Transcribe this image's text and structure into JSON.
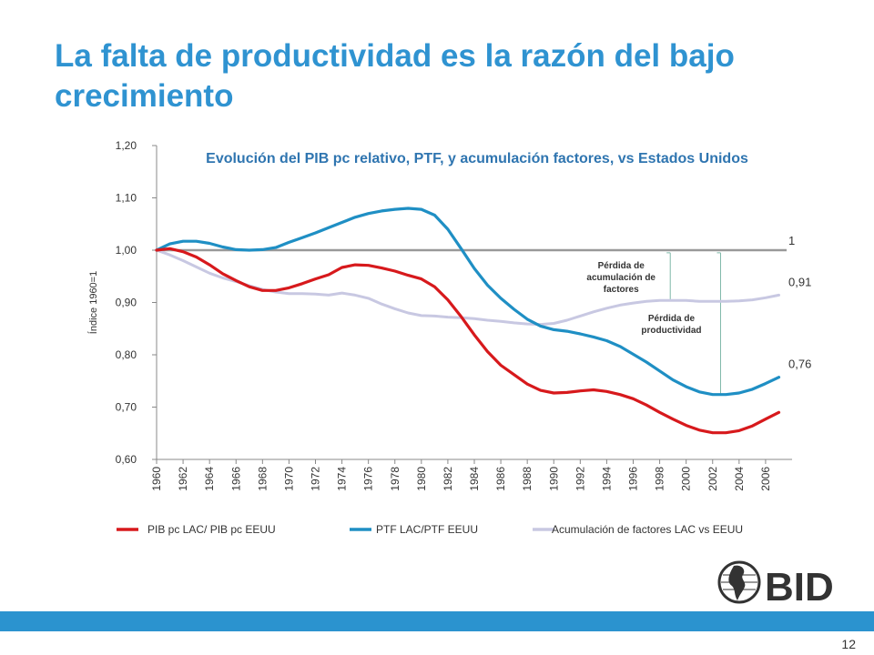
{
  "slide": {
    "title": "La falta de productividad es la razón del bajo crecimiento",
    "page_number": "12",
    "title_color": "#2f93d1",
    "bar_color": "#2b93cf",
    "logo": {
      "icon": "globe-americas-icon",
      "text": "BID"
    }
  },
  "chart_data": {
    "type": "line",
    "title": "Evolución del PIB pc relativo, PTF, y acumulación factores, vs Estados Unidos",
    "ylabel": "Índice 1960=1",
    "xlabel": "",
    "xlim": [
      1960,
      2008
    ],
    "ylim": [
      0.6,
      1.2
    ],
    "yticks": [
      {
        "v": 0.6,
        "label": "0,60"
      },
      {
        "v": 0.7,
        "label": "0,70"
      },
      {
        "v": 0.8,
        "label": "0,80"
      },
      {
        "v": 0.9,
        "label": "0,90"
      },
      {
        "v": 1.0,
        "label": "1,00"
      },
      {
        "v": 1.1,
        "label": "1,10"
      },
      {
        "v": 1.2,
        "label": "1,20"
      }
    ],
    "xticks": [
      1960,
      1962,
      1964,
      1966,
      1968,
      1970,
      1972,
      1974,
      1976,
      1978,
      1980,
      1982,
      1984,
      1986,
      1988,
      1990,
      1992,
      1994,
      1996,
      1998,
      2000,
      2002,
      2004,
      2006
    ],
    "grid": false,
    "legend_position": "bottom",
    "x": [
      1960,
      1961,
      1962,
      1963,
      1964,
      1965,
      1966,
      1967,
      1968,
      1969,
      1970,
      1971,
      1972,
      1973,
      1974,
      1975,
      1976,
      1977,
      1978,
      1979,
      1980,
      1981,
      1982,
      1983,
      1984,
      1985,
      1986,
      1987,
      1988,
      1989,
      1990,
      1991,
      1992,
      1993,
      1994,
      1995,
      1996,
      1997,
      1998,
      1999,
      2000,
      2001,
      2002,
      2003,
      2004,
      2005,
      2006,
      2007
    ],
    "reference_line": {
      "value": 1.0,
      "label": "1",
      "color": "#999999"
    },
    "series": [
      {
        "name": "PIB pc LAC/ PIB pc EEUU",
        "color": "#d7191c",
        "end_label": "",
        "values": [
          1.0,
          1.003,
          0.997,
          0.987,
          0.972,
          0.955,
          0.942,
          0.93,
          0.923,
          0.923,
          0.928,
          0.936,
          0.945,
          0.953,
          0.967,
          0.972,
          0.971,
          0.966,
          0.96,
          0.952,
          0.945,
          0.93,
          0.905,
          0.873,
          0.838,
          0.806,
          0.78,
          0.762,
          0.744,
          0.732,
          0.727,
          0.728,
          0.731,
          0.733,
          0.73,
          0.724,
          0.716,
          0.704,
          0.69,
          0.677,
          0.665,
          0.656,
          0.651,
          0.651,
          0.655,
          0.664,
          0.677,
          0.69
        ]
      },
      {
        "name": "PTF LAC/PTF EEUU",
        "color": "#1f8fc4",
        "end_label": "0,76",
        "values": [
          1.0,
          1.012,
          1.017,
          1.017,
          1.013,
          1.006,
          1.001,
          1.0,
          1.001,
          1.005,
          1.015,
          1.024,
          1.033,
          1.043,
          1.053,
          1.063,
          1.07,
          1.075,
          1.078,
          1.08,
          1.078,
          1.067,
          1.04,
          1.003,
          0.965,
          0.933,
          0.908,
          0.887,
          0.868,
          0.855,
          0.848,
          0.845,
          0.84,
          0.834,
          0.827,
          0.816,
          0.801,
          0.786,
          0.769,
          0.752,
          0.739,
          0.729,
          0.724,
          0.724,
          0.727,
          0.734,
          0.745,
          0.757
        ]
      },
      {
        "name": "Acumulación de factores LAC vs EEUU",
        "color": "#c8c8e2",
        "end_label": "0,91",
        "values": [
          1.0,
          0.991,
          0.98,
          0.968,
          0.956,
          0.947,
          0.94,
          0.932,
          0.925,
          0.92,
          0.917,
          0.917,
          0.916,
          0.914,
          0.918,
          0.914,
          0.908,
          0.897,
          0.888,
          0.88,
          0.875,
          0.874,
          0.872,
          0.871,
          0.869,
          0.866,
          0.864,
          0.861,
          0.859,
          0.858,
          0.86,
          0.866,
          0.874,
          0.882,
          0.889,
          0.895,
          0.899,
          0.902,
          0.904,
          0.904,
          0.904,
          0.902,
          0.902,
          0.902,
          0.903,
          0.905,
          0.909,
          0.914
        ]
      }
    ],
    "annotations": [
      {
        "text_lines": [
          "Pérdida de",
          "acumulación de",
          "factores"
        ],
        "year": 1998.8,
        "y_from": 0.995,
        "y_to": 0.905
      },
      {
        "text_lines": [
          "Pérdida de",
          "productividad"
        ],
        "year": 2002.6,
        "y_from": 0.995,
        "y_to": 0.725
      }
    ]
  }
}
